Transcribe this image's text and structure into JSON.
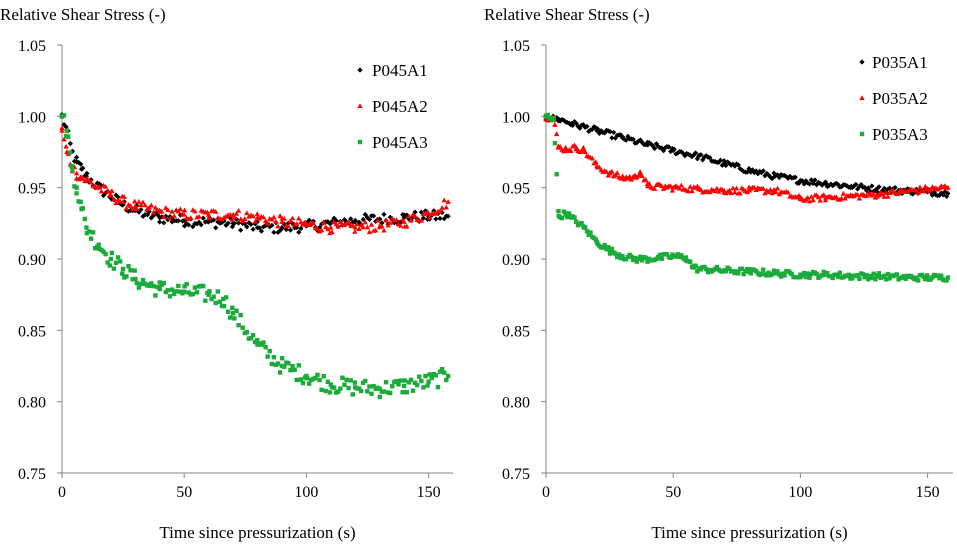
{
  "chart_data": [
    {
      "type": "scatter",
      "title": "",
      "ylabel": "Relative Shear Stress (-)",
      "xlabel": "Time since pressurization (s)",
      "xlim": [
        0,
        160
      ],
      "ylim": [
        0.75,
        1.05
      ],
      "xticks": [
        "0",
        "50",
        "100",
        "150"
      ],
      "yticks": [
        "0.75",
        "0.80",
        "0.85",
        "0.90",
        "0.95",
        "1.00",
        "1.05"
      ],
      "grid": false,
      "legend_position": "top-right",
      "series": [
        {
          "name": "P045A1",
          "color": "#000000",
          "marker": "diamond",
          "x": [
            0,
            2,
            4,
            6,
            8,
            10,
            15,
            20,
            25,
            30,
            35,
            40,
            45,
            50,
            60,
            70,
            80,
            90,
            100,
            110,
            120,
            130,
            140,
            150,
            158
          ],
          "y": [
            1.0,
            0.99,
            0.975,
            0.968,
            0.963,
            0.958,
            0.95,
            0.944,
            0.938,
            0.934,
            0.931,
            0.929,
            0.928,
            0.927,
            0.926,
            0.925,
            0.922,
            0.922,
            0.923,
            0.925,
            0.927,
            0.928,
            0.929,
            0.93,
            0.93
          ]
        },
        {
          "name": "P045A2",
          "color": "#ff0000",
          "marker": "triangle",
          "x": [
            0,
            2,
            4,
            6,
            8,
            10,
            15,
            20,
            25,
            30,
            35,
            40,
            50,
            60,
            70,
            80,
            90,
            100,
            110,
            120,
            130,
            140,
            150,
            158
          ],
          "y": [
            0.99,
            0.975,
            0.965,
            0.96,
            0.957,
            0.955,
            0.95,
            0.945,
            0.94,
            0.937,
            0.935,
            0.933,
            0.931,
            0.931,
            0.931,
            0.929,
            0.926,
            0.924,
            0.922,
            0.922,
            0.923,
            0.926,
            0.932,
            0.94
          ]
        },
        {
          "name": "P045A3",
          "color": "#1aab3a",
          "marker": "square",
          "x": [
            0,
            2,
            4,
            6,
            8,
            10,
            15,
            20,
            25,
            30,
            35,
            40,
            50,
            60,
            66,
            70,
            80,
            90,
            100,
            110,
            120,
            130,
            140,
            150,
            158
          ],
          "y": [
            1.0,
            0.99,
            0.965,
            0.95,
            0.935,
            0.922,
            0.91,
            0.9,
            0.893,
            0.886,
            0.882,
            0.879,
            0.877,
            0.875,
            0.872,
            0.862,
            0.84,
            0.825,
            0.818,
            0.812,
            0.81,
            0.809,
            0.811,
            0.814,
            0.818
          ]
        }
      ]
    },
    {
      "type": "scatter",
      "title": "",
      "ylabel": "Relative Shear Stress (-)",
      "xlabel": "Time since pressurization (s)",
      "xlim": [
        0,
        160
      ],
      "ylim": [
        0.75,
        1.05
      ],
      "xticks": [
        "0",
        "50",
        "100",
        "150"
      ],
      "yticks": [
        "0.75",
        "0.80",
        "0.85",
        "0.90",
        "0.95",
        "1.00",
        "1.05"
      ],
      "grid": false,
      "legend_position": "top-right",
      "series": [
        {
          "name": "P035A1",
          "color": "#000000",
          "marker": "diamond",
          "x": [
            0,
            5,
            10,
            20,
            30,
            40,
            50,
            60,
            70,
            80,
            90,
            100,
            110,
            120,
            130,
            140,
            150,
            158
          ],
          "y": [
            0.999,
            0.998,
            0.995,
            0.99,
            0.985,
            0.98,
            0.976,
            0.972,
            0.967,
            0.962,
            0.958,
            0.955,
            0.953,
            0.951,
            0.949,
            0.948,
            0.947,
            0.946
          ]
        },
        {
          "name": "P035A2",
          "color": "#ff0000",
          "marker": "triangle",
          "x": [
            0,
            3,
            5,
            8,
            12,
            15,
            20,
            25,
            30,
            35,
            37,
            40,
            50,
            60,
            70,
            80,
            90,
            100,
            110,
            120,
            130,
            140,
            150,
            158
          ],
          "y": [
            1.0,
            0.998,
            0.978,
            0.977,
            0.978,
            0.976,
            0.965,
            0.96,
            0.957,
            0.957,
            0.961,
            0.951,
            0.95,
            0.949,
            0.948,
            0.948,
            0.948,
            0.942,
            0.943,
            0.944,
            0.945,
            0.947,
            0.949,
            0.95
          ]
        },
        {
          "name": "P035A3",
          "color": "#1aab3a",
          "marker": "square",
          "x": [
            0,
            3,
            5,
            8,
            10,
            15,
            20,
            25,
            30,
            35,
            40,
            45,
            50,
            55,
            58,
            60,
            70,
            80,
            90,
            100,
            110,
            120,
            130,
            140,
            150,
            158
          ],
          "y": [
            1.0,
            0.999,
            0.93,
            0.932,
            0.929,
            0.922,
            0.912,
            0.906,
            0.902,
            0.9,
            0.9,
            0.901,
            0.902,
            0.901,
            0.894,
            0.893,
            0.892,
            0.891,
            0.89,
            0.889,
            0.889,
            0.888,
            0.888,
            0.887,
            0.887,
            0.887
          ]
        }
      ]
    }
  ]
}
